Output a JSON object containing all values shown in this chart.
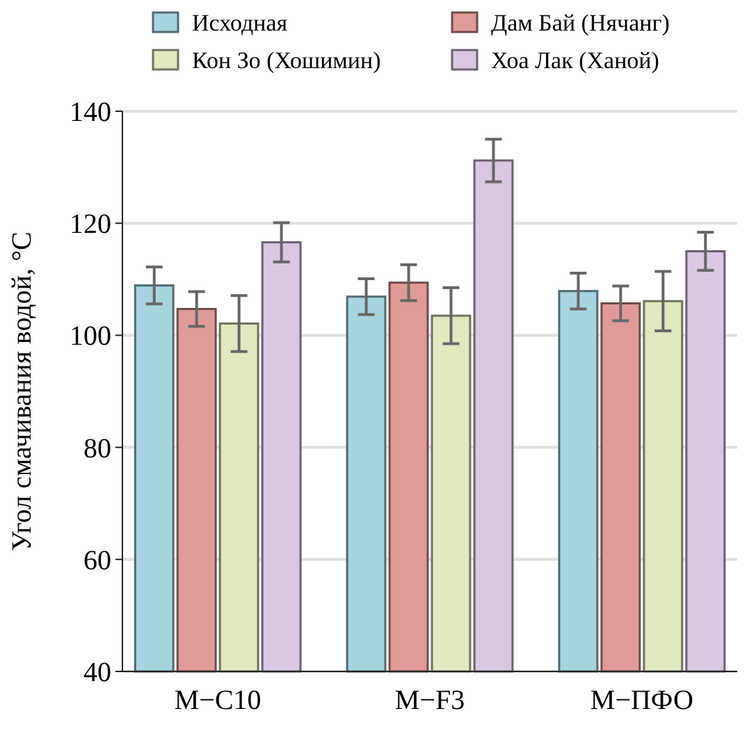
{
  "chart_data": {
    "type": "bar",
    "ylabel": "Угол смачивания водой, °С",
    "categories": [
      "М−С10",
      "М−F3",
      "М−ПФО"
    ],
    "series": [
      {
        "name": "Исходная",
        "color": "#a8d4e0",
        "values": [
          108.9,
          106.9,
          107.9
        ],
        "errors": [
          3.3,
          3.2,
          3.2
        ]
      },
      {
        "name": "Дам Бай (Нячанг)",
        "color": "#e09a98",
        "values": [
          104.7,
          109.4,
          105.7
        ],
        "errors": [
          3.1,
          3.2,
          3.1
        ]
      },
      {
        "name": "Кон Зо (Хошимин)",
        "color": "#e2e8c0",
        "values": [
          102.1,
          103.5,
          106.1
        ],
        "errors": [
          5,
          5,
          5.3
        ]
      },
      {
        "name": "Хоа Лак (Ханой)",
        "color": "#d8c8e0",
        "values": [
          116.6,
          131.2,
          115.0
        ],
        "errors": [
          3.5,
          3.8,
          3.4
        ]
      }
    ],
    "ylim": [
      40,
      140
    ],
    "yticks": [
      40,
      60,
      80,
      100,
      120,
      140
    ],
    "grid": "y",
    "legend": "top"
  }
}
